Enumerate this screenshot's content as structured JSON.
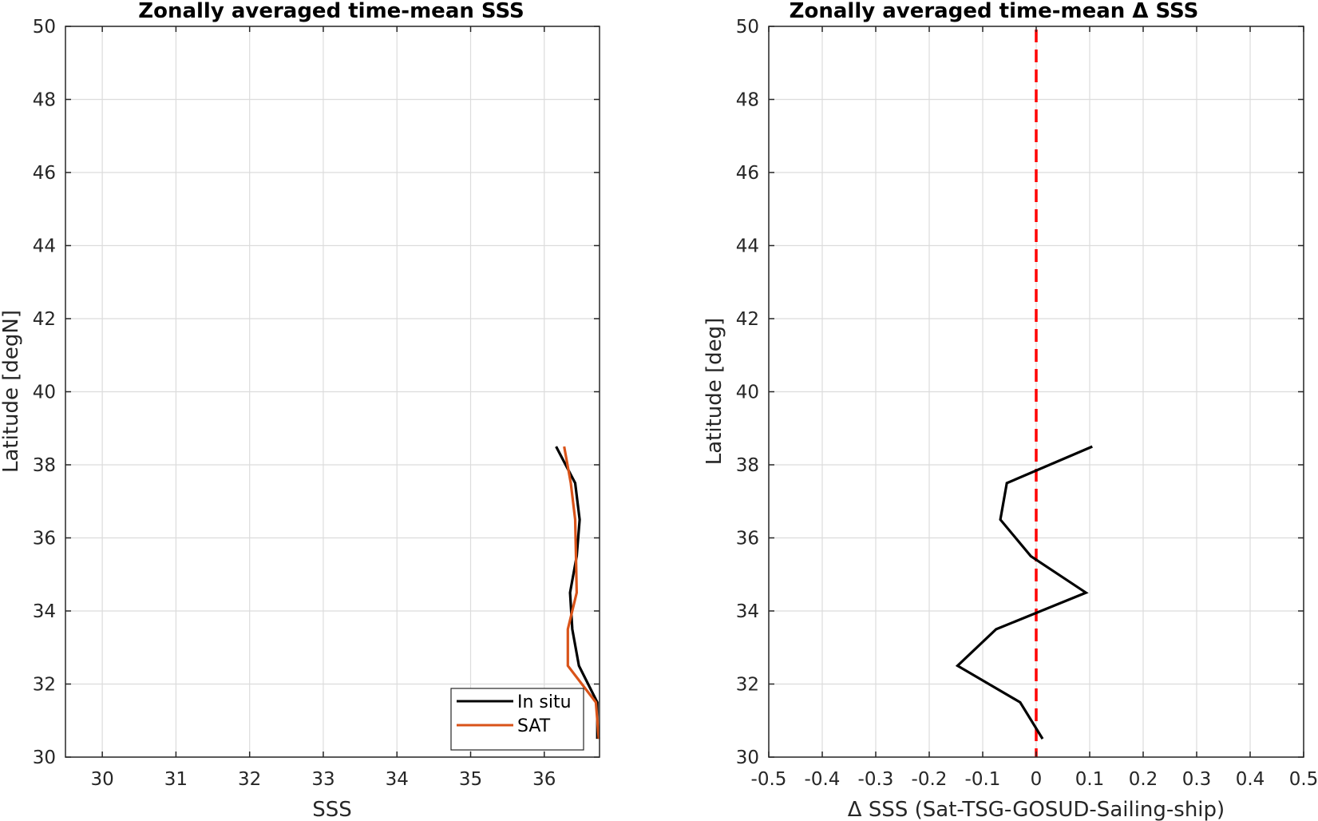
{
  "chart_data": [
    {
      "type": "line",
      "title": "Zonally averaged time-mean SSS",
      "xlabel": "SSS",
      "ylabel": "Latitude [degN]",
      "xlim": [
        29.5,
        36.75
      ],
      "ylim": [
        30,
        50
      ],
      "xticks": [
        "30",
        "31",
        "32",
        "33",
        "34",
        "35",
        "36"
      ],
      "yticks": [
        "30",
        "32",
        "34",
        "36",
        "38",
        "40",
        "42",
        "44",
        "46",
        "48",
        "50"
      ],
      "grid": true,
      "legend_position": "bottom-right",
      "series": [
        {
          "name": "In situ",
          "color": "#000000",
          "points": [
            [
              36.16,
              38.5
            ],
            [
              36.42,
              37.5
            ],
            [
              36.48,
              36.5
            ],
            [
              36.44,
              35.5
            ],
            [
              36.35,
              34.5
            ],
            [
              36.38,
              33.5
            ],
            [
              36.47,
              32.5
            ],
            [
              36.72,
              31.5
            ],
            [
              36.72,
              30.5
            ]
          ]
        },
        {
          "name": "SAT",
          "color": "#d95319",
          "points": [
            [
              36.27,
              38.5
            ],
            [
              36.36,
              37.5
            ],
            [
              36.42,
              36.5
            ],
            [
              36.43,
              35.5
            ],
            [
              36.44,
              34.5
            ],
            [
              36.32,
              33.5
            ],
            [
              36.32,
              32.5
            ],
            [
              36.7,
              31.5
            ],
            [
              36.74,
              30.5
            ]
          ]
        }
      ]
    },
    {
      "type": "line",
      "title": "Zonally averaged time-mean Δ SSS",
      "xlabel": "Δ SSS (Sat-TSG-GOSUD-Sailing-ship)",
      "ylabel": "Latitude [deg]",
      "xlim": [
        -0.5,
        0.5
      ],
      "ylim": [
        30,
        50
      ],
      "xticks": [
        "-0.5",
        "-0.4",
        "-0.3",
        "-0.2",
        "-0.1",
        "0",
        "0.1",
        "0.2",
        "0.3",
        "0.4",
        "0.5"
      ],
      "yticks": [
        "30",
        "32",
        "34",
        "36",
        "38",
        "40",
        "42",
        "44",
        "46",
        "48",
        "50"
      ],
      "grid": true,
      "reference_line": {
        "x": 0,
        "color": "#ff0000",
        "style": "dashed"
      },
      "series": [
        {
          "color": "#000000",
          "points": [
            [
              0.105,
              38.5
            ],
            [
              -0.055,
              37.5
            ],
            [
              -0.067,
              36.5
            ],
            [
              -0.01,
              35.5
            ],
            [
              0.093,
              34.5
            ],
            [
              -0.075,
              33.5
            ],
            [
              -0.147,
              32.5
            ],
            [
              -0.03,
              31.5
            ],
            [
              0.012,
              30.5
            ]
          ]
        }
      ]
    }
  ]
}
